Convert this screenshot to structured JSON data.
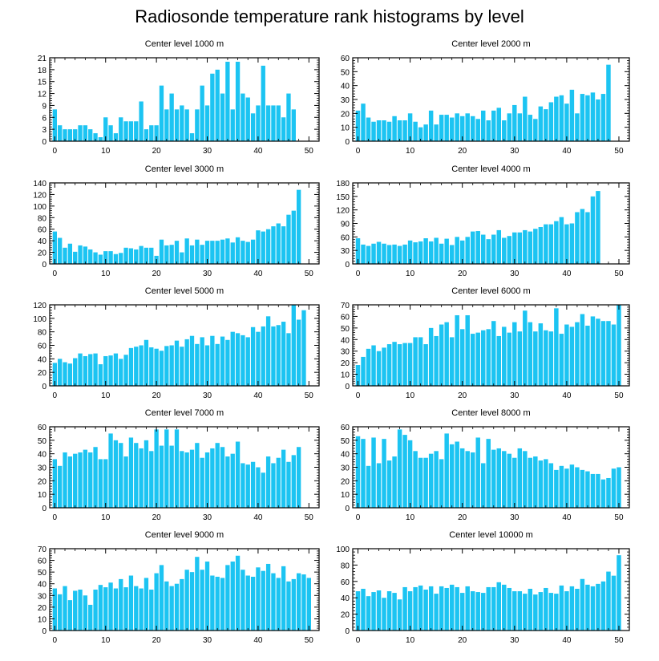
{
  "title": "Radiosonde temperature rank histograms by level",
  "bar_color": "#1CC4F2",
  "chart_data": [
    {
      "type": "bar",
      "title": "Center level 1000 m",
      "xlim": [
        -1,
        52
      ],
      "ylim": [
        0,
        21
      ],
      "yticks": [
        0,
        3,
        6,
        9,
        12,
        15,
        18,
        21
      ],
      "xticks": [
        0,
        10,
        20,
        30,
        40,
        50
      ],
      "values": [
        8,
        4,
        3,
        3,
        3,
        4,
        4,
        3,
        2,
        1,
        6,
        4,
        2,
        6,
        5,
        5,
        5,
        10,
        3,
        4,
        4,
        14,
        8,
        12,
        8,
        9,
        8,
        2,
        8,
        14,
        9,
        17,
        18,
        12,
        20,
        8,
        20,
        12,
        11,
        7,
        9,
        19,
        9,
        9,
        9,
        6,
        12,
        8
      ]
    },
    {
      "type": "bar",
      "title": "Center level 2000 m",
      "xlim": [
        -1,
        52
      ],
      "ylim": [
        0,
        60
      ],
      "yticks": [
        0,
        10,
        20,
        30,
        40,
        50,
        60
      ],
      "xticks": [
        0,
        10,
        20,
        30,
        40,
        50
      ],
      "values": [
        22,
        27,
        17,
        14,
        15,
        15,
        14,
        18,
        15,
        15,
        20,
        14,
        10,
        12,
        22,
        12,
        19,
        19,
        17,
        20,
        18,
        20,
        18,
        16,
        22,
        15,
        22,
        24,
        15,
        20,
        26,
        20,
        32,
        19,
        16,
        25,
        23,
        28,
        32,
        33,
        27,
        37,
        20,
        34,
        33,
        35,
        30,
        34,
        55
      ]
    },
    {
      "type": "bar",
      "title": "Center level 3000 m",
      "xlim": [
        -1,
        52
      ],
      "ylim": [
        0,
        140
      ],
      "yticks": [
        0,
        20,
        40,
        60,
        80,
        100,
        120,
        140
      ],
      "xticks": [
        0,
        10,
        20,
        30,
        40,
        50
      ],
      "values": [
        56,
        45,
        28,
        35,
        21,
        32,
        30,
        25,
        20,
        16,
        22,
        22,
        17,
        19,
        28,
        27,
        25,
        31,
        28,
        28,
        14,
        42,
        32,
        33,
        40,
        20,
        44,
        32,
        42,
        33,
        40,
        40,
        40,
        42,
        44,
        37,
        46,
        40,
        38,
        42,
        58,
        56,
        60,
        65,
        70,
        65,
        85,
        92,
        128
      ]
    },
    {
      "type": "bar",
      "title": "Center level 4000 m",
      "xlim": [
        -1,
        52
      ],
      "ylim": [
        0,
        180
      ],
      "yticks": [
        0,
        30,
        60,
        90,
        120,
        150,
        180
      ],
      "xticks": [
        0,
        10,
        20,
        30,
        40,
        50
      ],
      "values": [
        57,
        43,
        40,
        45,
        49,
        45,
        42,
        43,
        40,
        43,
        52,
        48,
        50,
        57,
        50,
        58,
        45,
        56,
        42,
        60,
        52,
        60,
        72,
        73,
        65,
        55,
        65,
        75,
        58,
        62,
        70,
        70,
        75,
        72,
        78,
        82,
        88,
        88,
        95,
        104,
        88,
        90,
        115,
        122,
        115,
        150,
        162
      ]
    },
    {
      "type": "bar",
      "title": "Center level 5000 m",
      "xlim": [
        -1,
        52
      ],
      "ylim": [
        0,
        120
      ],
      "yticks": [
        0,
        20,
        40,
        60,
        80,
        100,
        120
      ],
      "xticks": [
        0,
        10,
        20,
        30,
        40,
        50
      ],
      "values": [
        34,
        40,
        35,
        33,
        41,
        48,
        44,
        47,
        48,
        32,
        44,
        45,
        48,
        40,
        46,
        56,
        58,
        60,
        68,
        57,
        55,
        52,
        59,
        60,
        67,
        58,
        69,
        74,
        62,
        72,
        60,
        74,
        62,
        73,
        68,
        80,
        78,
        75,
        72,
        87,
        80,
        88,
        103,
        88,
        90,
        95,
        78,
        120,
        98,
        112
      ]
    },
    {
      "type": "bar",
      "title": "Center level 6000 m",
      "xlim": [
        -1,
        52
      ],
      "ylim": [
        0,
        70
      ],
      "yticks": [
        0,
        10,
        20,
        30,
        40,
        50,
        60,
        70
      ],
      "xticks": [
        0,
        10,
        20,
        30,
        40,
        50
      ],
      "values": [
        18,
        25,
        32,
        35,
        30,
        33,
        36,
        38,
        36,
        37,
        37,
        42,
        42,
        36,
        50,
        43,
        53,
        55,
        42,
        61,
        49,
        61,
        45,
        46,
        48,
        49,
        56,
        43,
        51,
        46,
        55,
        47,
        65,
        55,
        47,
        54,
        48,
        47,
        67,
        45,
        53,
        51,
        55,
        62,
        52,
        60,
        58,
        56,
        56,
        53,
        70
      ]
    },
    {
      "type": "bar",
      "title": "Center level 7000 m",
      "xlim": [
        -1,
        52
      ],
      "ylim": [
        0,
        60
      ],
      "yticks": [
        0,
        10,
        20,
        30,
        40,
        50,
        60
      ],
      "xticks": [
        0,
        10,
        20,
        30,
        40,
        50
      ],
      "values": [
        36,
        31,
        41,
        38,
        40,
        41,
        43,
        41,
        45,
        36,
        36,
        55,
        50,
        48,
        38,
        52,
        48,
        44,
        50,
        42,
        58,
        46,
        58,
        46,
        58,
        42,
        41,
        43,
        48,
        37,
        41,
        44,
        48,
        45,
        38,
        40,
        49,
        33,
        32,
        34,
        30,
        26,
        38,
        33,
        37,
        43,
        34,
        39,
        45
      ]
    },
    {
      "type": "bar",
      "title": "Center level 8000 m",
      "xlim": [
        -1,
        52
      ],
      "ylim": [
        0,
        60
      ],
      "yticks": [
        0,
        10,
        20,
        30,
        40,
        50,
        60
      ],
      "xticks": [
        0,
        10,
        20,
        30,
        40,
        50
      ],
      "values": [
        53,
        51,
        31,
        52,
        33,
        51,
        35,
        38,
        58,
        54,
        50,
        42,
        37,
        37,
        40,
        42,
        36,
        55,
        47,
        49,
        44,
        42,
        41,
        52,
        33,
        51,
        43,
        44,
        42,
        40,
        37,
        44,
        42,
        37,
        38,
        35,
        36,
        33,
        28,
        31,
        29,
        32,
        30,
        28,
        27,
        25,
        25,
        21,
        22,
        29,
        30
      ]
    },
    {
      "type": "bar",
      "title": "Center level 9000 m",
      "xlim": [
        -1,
        52
      ],
      "ylim": [
        0,
        70
      ],
      "yticks": [
        0,
        10,
        20,
        30,
        40,
        50,
        60,
        70
      ],
      "xticks": [
        0,
        10,
        20,
        30,
        40,
        50
      ],
      "values": [
        36,
        31,
        38,
        26,
        34,
        35,
        30,
        22,
        35,
        39,
        37,
        41,
        36,
        44,
        37,
        47,
        38,
        36,
        45,
        35,
        49,
        56,
        42,
        38,
        40,
        44,
        52,
        50,
        63,
        52,
        59,
        47,
        46,
        45,
        56,
        59,
        64,
        52,
        47,
        46,
        54,
        51,
        57,
        49,
        45,
        55,
        42,
        44,
        49,
        48,
        45
      ]
    },
    {
      "type": "bar",
      "title": "Center level 10000 m",
      "xlim": [
        -1,
        52
      ],
      "ylim": [
        0,
        100
      ],
      "yticks": [
        0,
        20,
        40,
        60,
        80,
        100
      ],
      "xticks": [
        0,
        10,
        20,
        30,
        40,
        50
      ],
      "values": [
        48,
        51,
        42,
        47,
        49,
        40,
        48,
        46,
        38,
        53,
        48,
        53,
        55,
        50,
        54,
        45,
        54,
        52,
        56,
        53,
        46,
        54,
        48,
        47,
        46,
        53,
        53,
        59,
        56,
        52,
        48,
        48,
        45,
        51,
        44,
        47,
        52,
        46,
        45,
        55,
        48,
        54,
        51,
        63,
        56,
        54,
        57,
        60,
        72,
        67,
        92
      ]
    }
  ]
}
